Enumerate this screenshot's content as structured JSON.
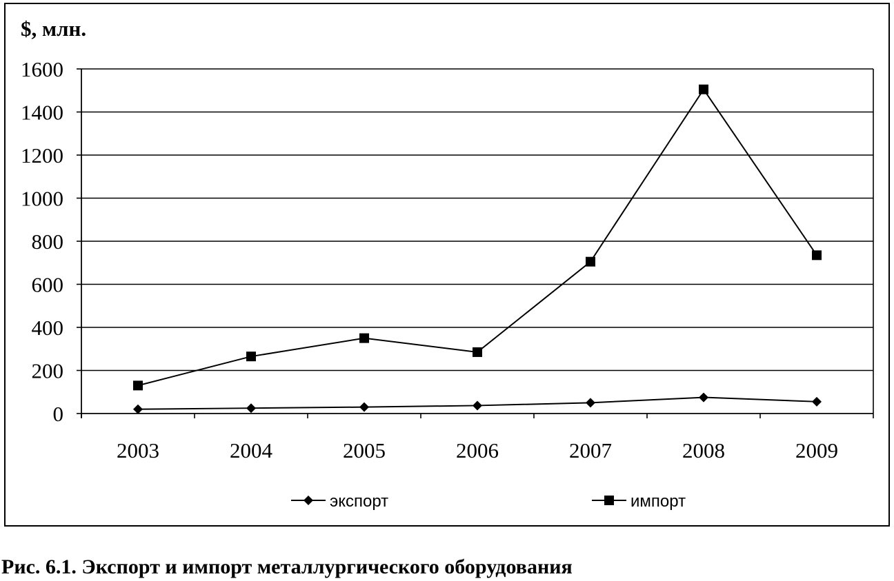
{
  "chart_data": {
    "type": "line",
    "y_unit_label": "$, млн.",
    "categories": [
      "2003",
      "2004",
      "2005",
      "2006",
      "2007",
      "2008",
      "2009"
    ],
    "series": [
      {
        "name": "экспорт",
        "marker": "diamond",
        "values": [
          20,
          25,
          30,
          37,
          50,
          75,
          55
        ]
      },
      {
        "name": "импорт",
        "marker": "square",
        "values": [
          130,
          265,
          350,
          285,
          705,
          1505,
          735
        ]
      }
    ],
    "ylim": [
      0,
      1600
    ],
    "y_ticks": [
      0,
      200,
      400,
      600,
      800,
      1000,
      1200,
      1400,
      1600
    ],
    "grid": true,
    "legend_position": "bottom",
    "line_color": "#000000"
  },
  "caption": "Рис. 6.1. Экспорт и импорт металлургического оборудования"
}
